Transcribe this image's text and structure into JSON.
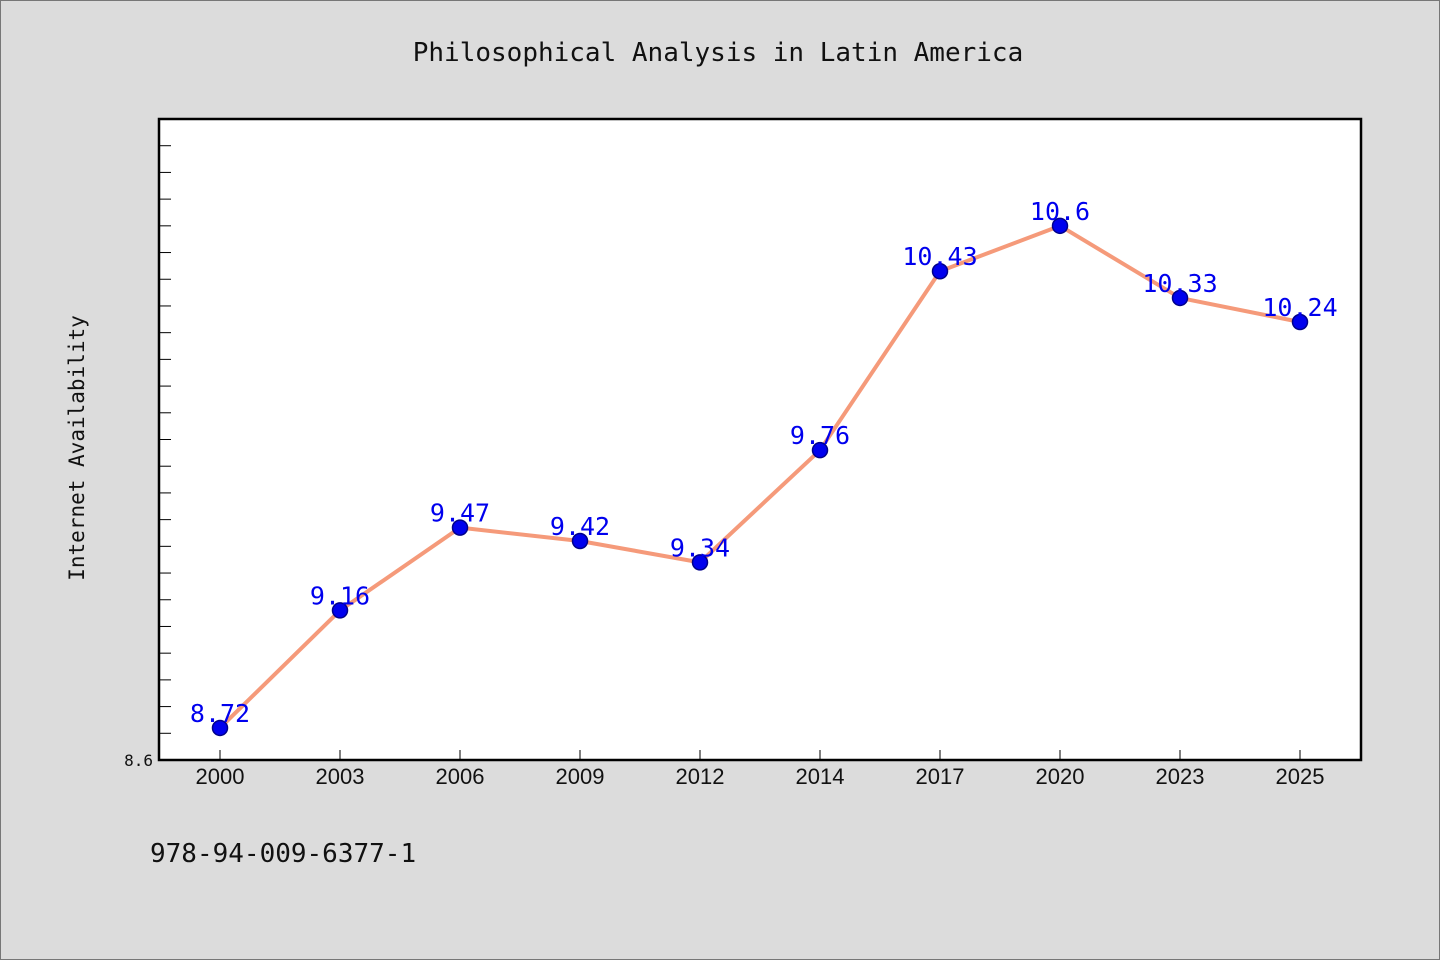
{
  "chart_data": {
    "type": "line",
    "title": "Philosophical Analysis in Latin America",
    "xlabel": "",
    "ylabel": "Internet Availability",
    "categories": [
      "2000",
      "2003",
      "2006",
      "2009",
      "2012",
      "2014",
      "2017",
      "2020",
      "2023",
      "2025"
    ],
    "series": [
      {
        "values": [
          8.72,
          9.16,
          9.47,
          9.42,
          9.34,
          9.76,
          10.43,
          10.6,
          10.33,
          10.24
        ]
      }
    ],
    "data_labels": [
      "8.72",
      "9.16",
      "9.47",
      "9.42",
      "9.34",
      "9.76",
      "10.43",
      "10.6",
      "10.33",
      "10.24"
    ],
    "ylim": [
      8.6,
      11.0
    ],
    "ytick_labels": [
      {
        "value": 8.6,
        "label": "8.6"
      }
    ],
    "minor_tick_step": 0.1,
    "grid": false,
    "colors": {
      "line": "#f59a7a",
      "marker": "#0000ee",
      "marker_edge": "#00008b",
      "data_label": "#0000ee",
      "plot_bg": "#ffffff",
      "page_bg": "#dcdcdc"
    }
  },
  "footer": {
    "isbn": "978-94-009-6377-1"
  }
}
